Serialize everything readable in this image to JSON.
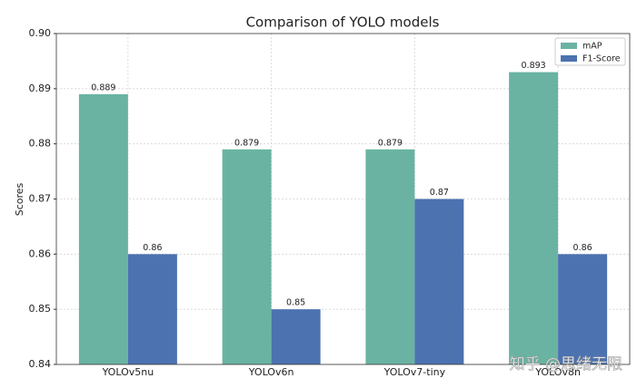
{
  "chart_data": {
    "type": "bar",
    "title": "Comparison of YOLO models",
    "y_label": "Scores",
    "categories": [
      "YOLOv5nu",
      "YOLOv6n",
      "YOLOv7-tiny",
      "YOLOv8n"
    ],
    "series": [
      {
        "name": "mAP",
        "color": "#6ab3a3",
        "values": [
          0.889,
          0.879,
          0.879,
          0.893
        ]
      },
      {
        "name": "F1-Score",
        "color": "#4c72b0",
        "values": [
          0.86,
          0.85,
          0.87,
          0.86
        ]
      }
    ],
    "ylim": [
      0.84,
      0.9
    ],
    "yticks": [
      0.84,
      0.85,
      0.86,
      0.87,
      0.88,
      0.89,
      {
        "value": 0.9,
        "label": "0.90"
      }
    ],
    "grid": true,
    "legend": "upper right",
    "watermark": "知乎 @思绪无限"
  }
}
